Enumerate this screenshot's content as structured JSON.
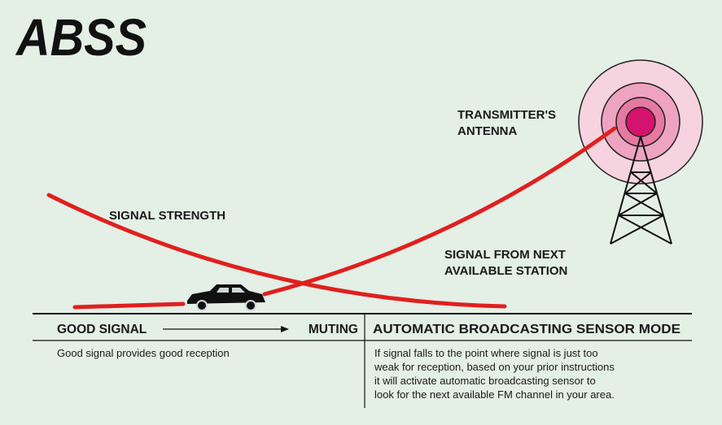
{
  "logo": "ABSS",
  "labels": {
    "antenna": [
      "TRANSMITTER'S",
      "ANTENNA"
    ],
    "signal_strength": "SIGNAL STRENGTH",
    "next_station": [
      "SIGNAL FROM NEXT",
      "AVAILABLE STATION"
    ]
  },
  "table": {
    "left_header": {
      "start": "GOOD SIGNAL",
      "end": "MUTING"
    },
    "right_header": "AUTOMATIC BROADCASTING SENSOR MODE",
    "left_text": "Good signal provides good reception",
    "right_text": [
      "If signal falls to the point where signal is just too",
      "weak for reception, based on your prior instructions",
      "it will activate automatic broadcasting sensor to",
      "look for the next available FM channel in your area."
    ]
  }
}
